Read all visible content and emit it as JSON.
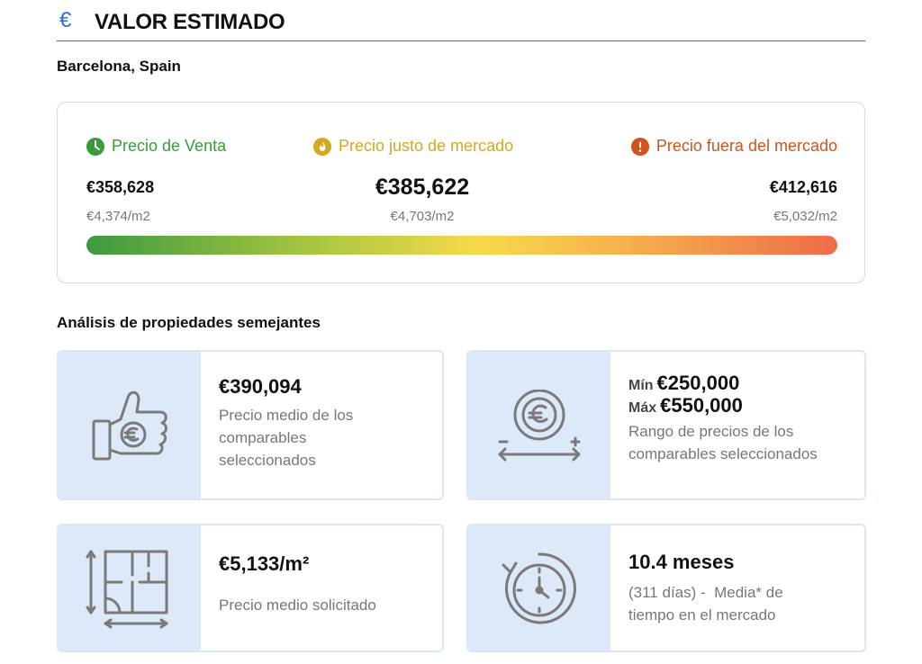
{
  "header": {
    "icon": "euro-icon",
    "title": "VALOR ESTIMADO",
    "accent_color": "#2d6bd6"
  },
  "location": "Barcelona, Spain",
  "price_range": {
    "sale": {
      "label": "Precio de Venta",
      "value": "€358,628",
      "per_m2": "€4,374/m2",
      "color": "#3a9b3a",
      "icon": "clock-icon"
    },
    "fair": {
      "label": "Precio justo de mercado",
      "value": "€385,622",
      "per_m2": "€4,703/m2",
      "color": "#d3a822",
      "icon": "flame-icon"
    },
    "out": {
      "label": "Precio fuera del mercado",
      "value": "€412,616",
      "per_m2": "€5,032/m2",
      "color": "#d2521c",
      "icon": "alert-icon"
    }
  },
  "comparables": {
    "title": "Análisis de propiedades semejantes",
    "avg_price": {
      "value": "€390,094",
      "description": "Precio medio de los comparables seleccionados",
      "icon": "thumbs-up-euro-icon"
    },
    "range": {
      "min_label": "Mín",
      "min_value": "€250,000",
      "max_label": "Máx",
      "max_value": "€550,000",
      "description": "Rango de precios de los comparables seleccionados",
      "icon": "euro-range-icon"
    },
    "per_m2": {
      "value": "€5,133/m²",
      "description": "Precio medio solicitado",
      "icon": "floor-plan-icon"
    },
    "time": {
      "value": "10.4 meses",
      "description": "(311 días) -  Media* de tiempo en el mercado",
      "icon": "stopwatch-icon"
    }
  }
}
